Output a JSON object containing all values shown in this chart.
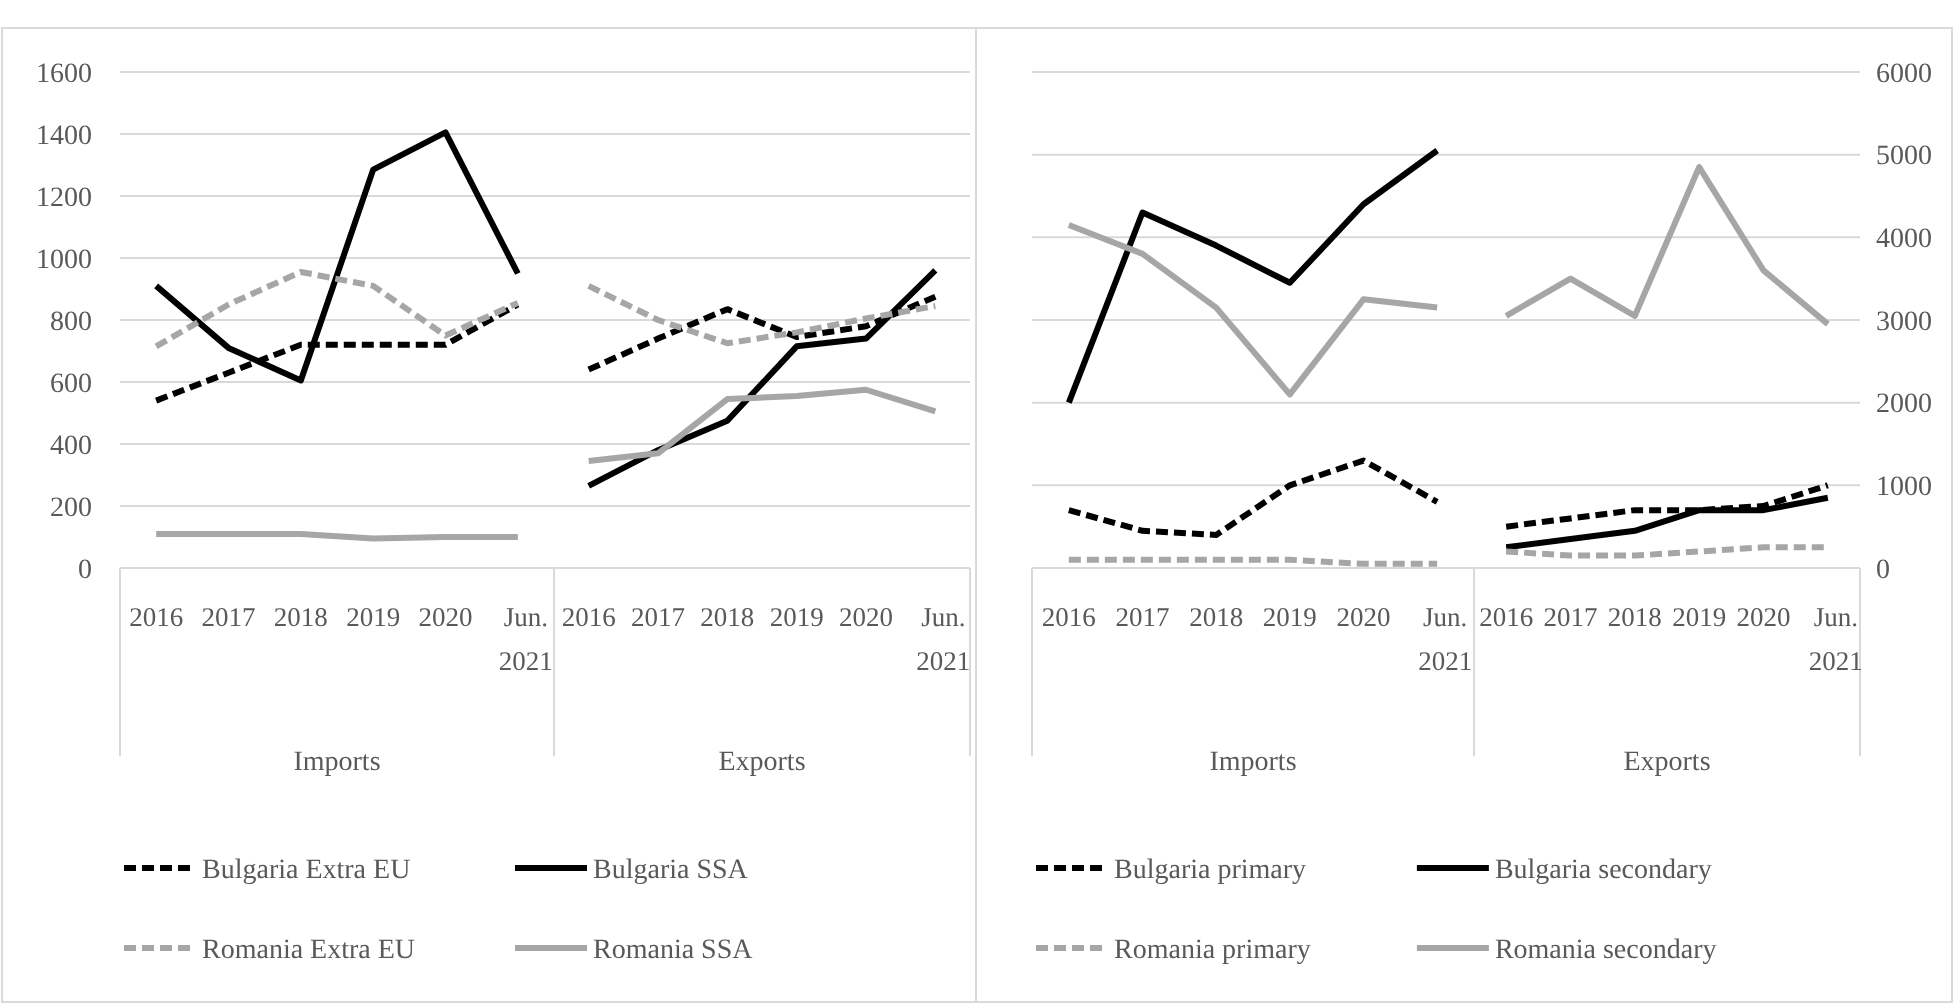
{
  "chart_data": [
    {
      "type": "line",
      "xlabel": "Imports",
      "categories": [
        "2016",
        "2017",
        "2018",
        "2019",
        "2020",
        "Jun. 2021"
      ],
      "ylim": [
        0,
        1600
      ],
      "yticks": [
        0,
        200,
        400,
        600,
        800,
        1000,
        1200,
        1400,
        1600
      ],
      "grid": "y",
      "legend": "bottom",
      "series": [
        {
          "name": "Bulgaria Extra EU",
          "color": "#000000",
          "line_style": "dashed",
          "values": [
            540,
            630,
            720,
            720,
            720,
            850
          ]
        },
        {
          "name": "Bulgaria SSA",
          "color": "#000000",
          "line_style": "solid",
          "values": [
            910,
            710,
            605,
            1285,
            1405,
            950
          ]
        },
        {
          "name": "Romania Extra EU",
          "color": "#a6a6a6",
          "line_style": "dashed",
          "values": [
            715,
            850,
            955,
            910,
            750,
            855
          ]
        },
        {
          "name": "Romania SSA",
          "color": "#a6a6a6",
          "line_style": "solid",
          "values": [
            110,
            110,
            110,
            95,
            100,
            100
          ]
        }
      ]
    },
    {
      "type": "line",
      "xlabel": "Exports",
      "categories": [
        "2016",
        "2017",
        "2018",
        "2019",
        "2020",
        "Jun. 2021"
      ],
      "ylim": [
        0,
        1600
      ],
      "yticks": [
        0,
        200,
        400,
        600,
        800,
        1000,
        1200,
        1400,
        1600
      ],
      "tick_labels": "x",
      "grid": "y",
      "series": [
        {
          "color": "#000000",
          "line_style": "dashed",
          "values": [
            640,
            740,
            835,
            745,
            780,
            875
          ]
        },
        {
          "color": "#000000",
          "line_style": "solid",
          "values": [
            265,
            380,
            475,
            715,
            740,
            960
          ]
        },
        {
          "color": "#a6a6a6",
          "line_style": "dashed",
          "values": [
            910,
            800,
            725,
            760,
            805,
            845
          ]
        },
        {
          "color": "#a6a6a6",
          "line_style": "solid",
          "values": [
            345,
            370,
            545,
            555,
            575,
            505
          ]
        }
      ]
    },
    {
      "type": "line",
      "xlabel": "Imports",
      "categories": [
        "2016",
        "2017",
        "2018",
        "2019",
        "2020",
        "Jun. 2021"
      ],
      "y2lim": [
        0,
        6000
      ],
      "y2ticks": [
        0,
        1000,
        2000,
        3000,
        4000,
        5000,
        6000
      ],
      "tick_labels": "x",
      "grid": "y",
      "legend": "bottom",
      "series": [
        {
          "name": "Bulgaria primary",
          "color": "#000000",
          "line_style": "dashed",
          "axis": "y2",
          "values": [
            700,
            450,
            400,
            1000,
            1300,
            800
          ]
        },
        {
          "name": "Bulgaria secondary",
          "color": "#000000",
          "line_style": "solid",
          "axis": "y2",
          "values": [
            2000,
            4300,
            3900,
            3450,
            4400,
            5050
          ]
        },
        {
          "name": "Romania primary",
          "color": "#a6a6a6",
          "line_style": "dashed",
          "axis": "y2",
          "values": [
            100,
            100,
            100,
            100,
            50,
            50
          ]
        },
        {
          "name": "Romania secondary",
          "color": "#a6a6a6",
          "line_style": "solid",
          "axis": "y2",
          "values": [
            4150,
            3800,
            3150,
            2100,
            3250,
            3150
          ]
        }
      ]
    },
    {
      "type": "line",
      "xlabel": "Exports",
      "categories": [
        "2016",
        "2017",
        "2018",
        "2019",
        "2020",
        "Jun. 2021"
      ],
      "y2lim": [
        0,
        6000
      ],
      "y2ticks": [
        0,
        1000,
        2000,
        3000,
        4000,
        5000,
        6000
      ],
      "grid": "y",
      "series": [
        {
          "color": "#000000",
          "line_style": "dashed",
          "axis": "y2",
          "values": [
            500,
            600,
            700,
            700,
            750,
            1000
          ]
        },
        {
          "color": "#000000",
          "line_style": "solid",
          "axis": "y2",
          "values": [
            250,
            350,
            450,
            700,
            700,
            850
          ]
        },
        {
          "color": "#a6a6a6",
          "line_style": "dashed",
          "axis": "y2",
          "values": [
            200,
            150,
            150,
            200,
            250,
            250
          ]
        },
        {
          "color": "#a6a6a6",
          "line_style": "solid",
          "axis": "y2",
          "values": [
            3050,
            3500,
            3050,
            4850,
            3600,
            2950
          ]
        }
      ]
    }
  ]
}
